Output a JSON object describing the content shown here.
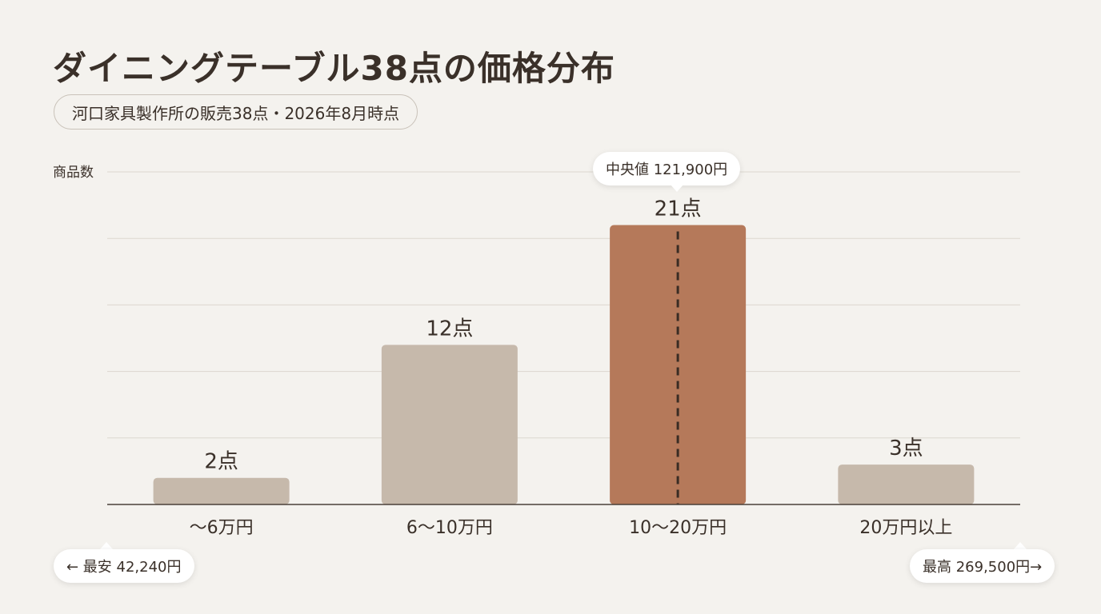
{
  "title": "ダイニングテーブル38点の価格分布",
  "subtitle": "河口家具製作所の販売38点・2026年8月時点",
  "chart_data": {
    "type": "bar",
    "ylabel": "商品数",
    "ylim": [
      0,
      25
    ],
    "grid": true,
    "categories": [
      "〜6万円",
      "6〜10万円",
      "10〜20万円",
      "20万円以上"
    ],
    "values": [
      2,
      12,
      21,
      3
    ],
    "value_labels": [
      "2点",
      "12点",
      "21点",
      "3点"
    ],
    "highlight_index": 2,
    "colors": {
      "bar": "#c6b9ab",
      "highlight": "#b5795a",
      "median_line": "#3a2c24",
      "grid": "#dcd7cf",
      "axis": "#4a4038"
    },
    "annotations": {
      "median": "中央値 121,900円",
      "min": "← 最安 42,240円",
      "max": "最高 269,500円→"
    }
  }
}
